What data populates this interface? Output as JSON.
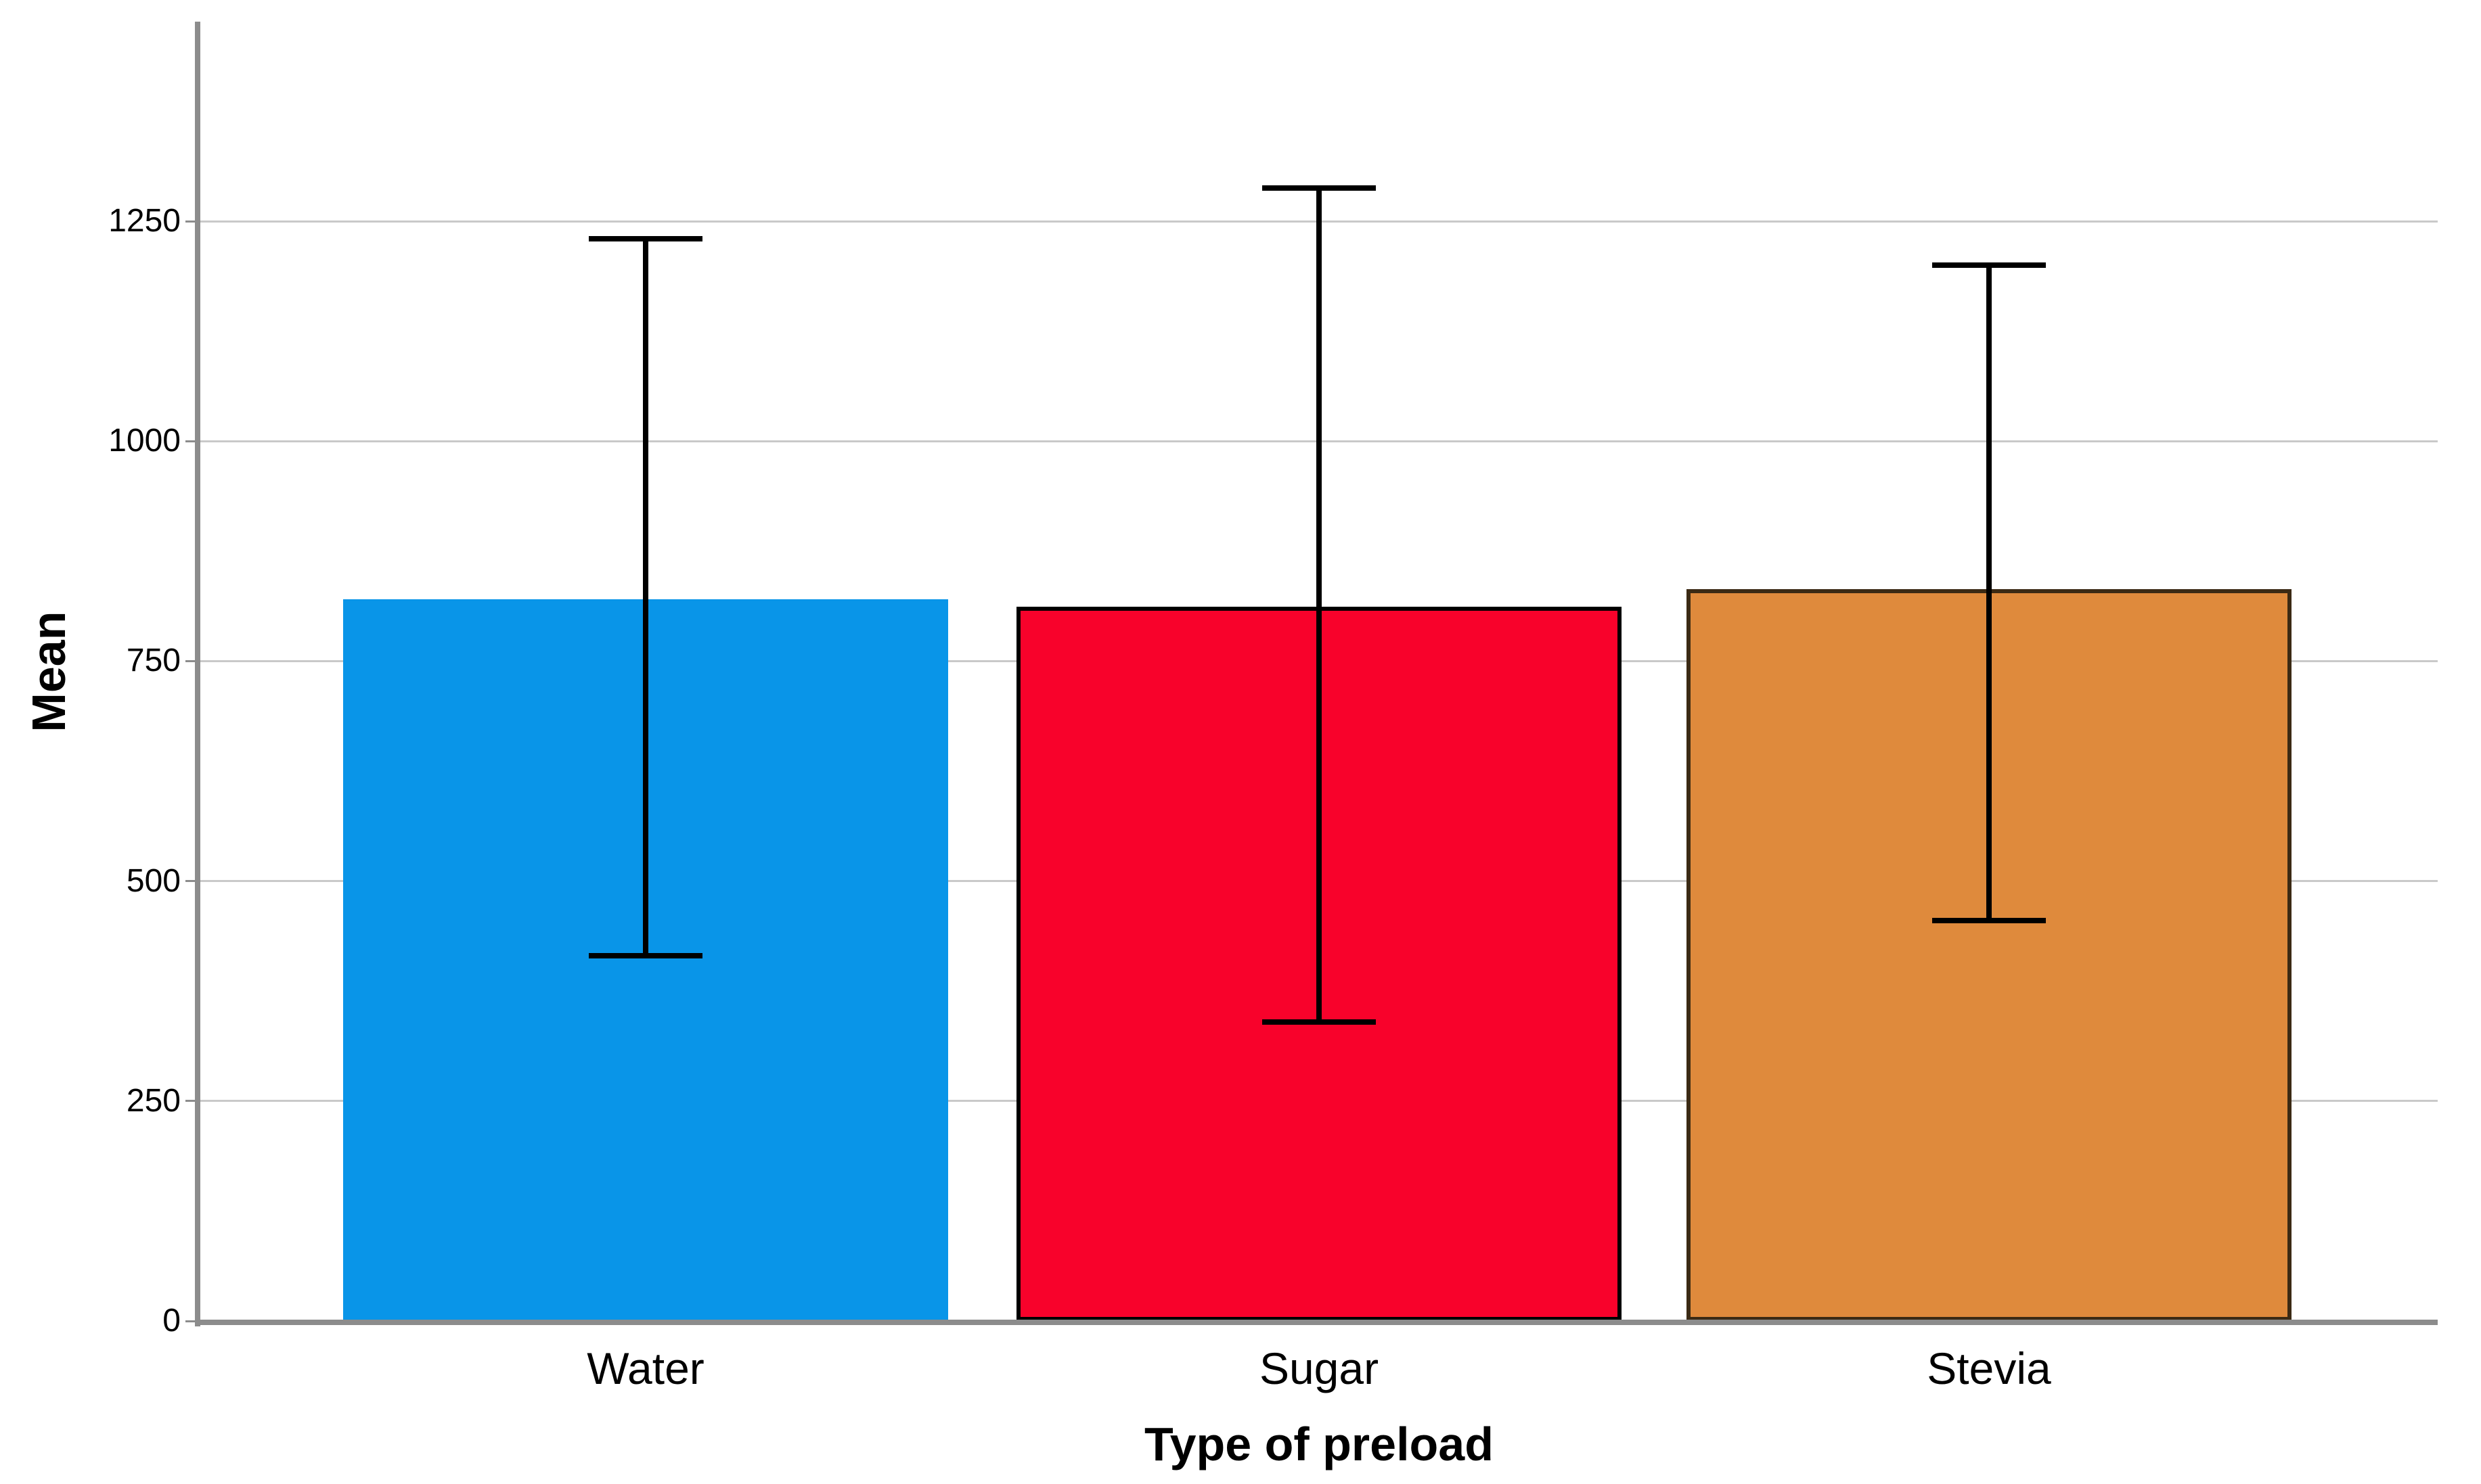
{
  "figure": {
    "background": "#FFFFFF",
    "plot_background": "#FFFFFF",
    "gridline_color": "#C9C9C9",
    "axis_line_color": "#8C8C8C",
    "error_bar_color": "#000000",
    "text_color": "#000000"
  },
  "chart_data": {
    "type": "bar",
    "title": "",
    "xlabel": "Type of preload",
    "ylabel": "Mean",
    "categories": [
      "Water",
      "Sugar",
      "Stevia"
    ],
    "values": [
      820,
      812,
      832
    ],
    "error_low": [
      415,
      340,
      455
    ],
    "error_high": [
      1230,
      1288,
      1200
    ],
    "bar_colors": [
      "#0995E8",
      "#F8022B",
      "#DF8A3C"
    ],
    "bar_border_colors": [
      "none",
      "#000000",
      "#3B2A14"
    ],
    "yticks": [
      0,
      250,
      500,
      750,
      1000,
      1250
    ],
    "ylim": [
      0,
      1480
    ],
    "grid": true,
    "legend": "none"
  }
}
